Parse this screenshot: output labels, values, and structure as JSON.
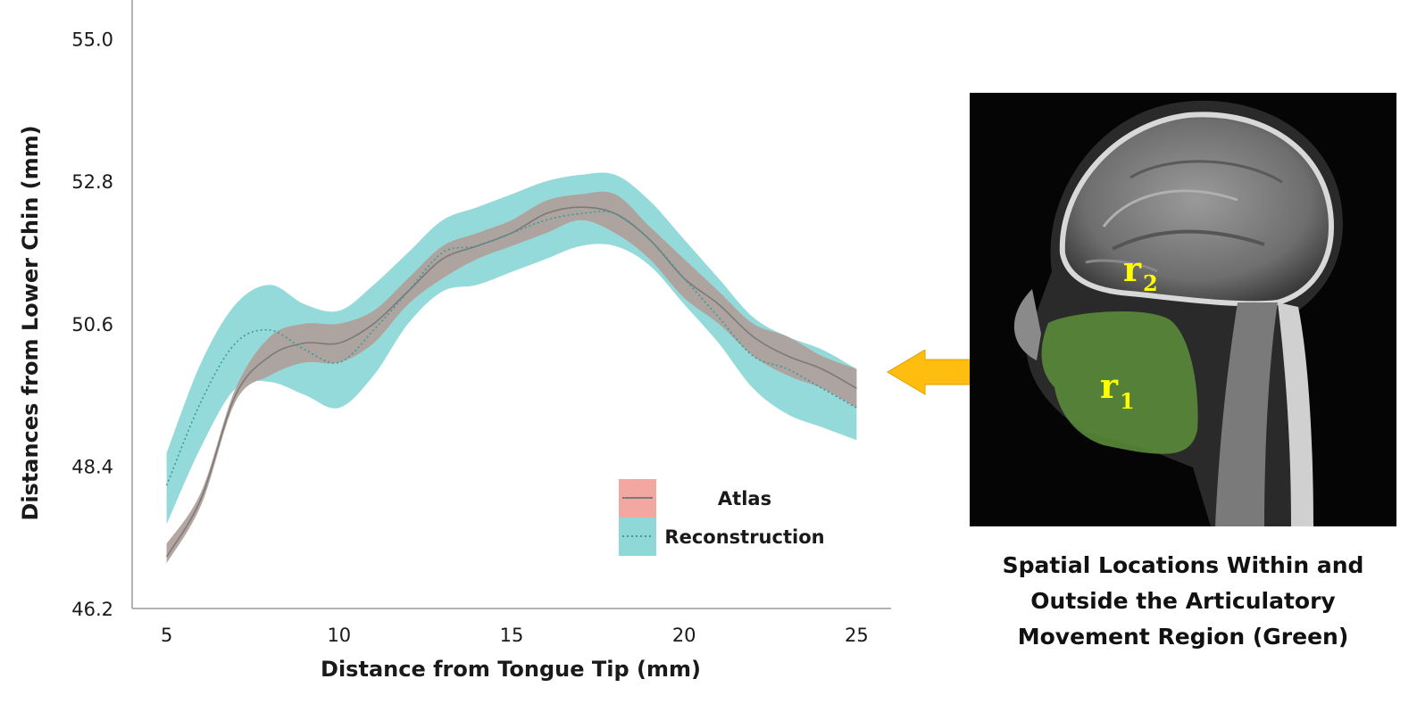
{
  "chart_data": {
    "type": "line",
    "xlabel": "Distance from Tongue Tip (mm)",
    "ylabel": "Distances from Lower Chin (mm)",
    "xlim": [
      4,
      26
    ],
    "ylim": [
      46.2,
      55.6
    ],
    "xticks": [
      5,
      10,
      15,
      20,
      25
    ],
    "yticks": [
      46.2,
      48.4,
      50.6,
      52.8,
      55.0
    ],
    "ytick_labels": [
      "46.2",
      "48.4",
      "50.6",
      "52.8",
      "55.0"
    ],
    "legend_position": "lower-right",
    "x": [
      5,
      6,
      7,
      8,
      9,
      10,
      11,
      12,
      13,
      14,
      15,
      16,
      17,
      18,
      19,
      20,
      21,
      22,
      23,
      24,
      25
    ],
    "series": [
      {
        "name": "Atlas",
        "line_style": "solid",
        "line_color": "#7a7a7a",
        "band_color": "#f2a7a0",
        "values": [
          47.0,
          47.9,
          49.5,
          50.1,
          50.3,
          50.3,
          50.6,
          51.1,
          51.6,
          51.8,
          52.0,
          52.3,
          52.4,
          52.3,
          51.9,
          51.3,
          50.9,
          50.4,
          50.1,
          49.9,
          49.6
        ],
        "lower": [
          46.9,
          47.8,
          49.4,
          49.8,
          50.0,
          50.0,
          50.3,
          50.9,
          51.3,
          51.6,
          51.8,
          52.0,
          52.2,
          52.0,
          51.6,
          51.0,
          50.6,
          50.1,
          49.8,
          49.6,
          49.3
        ],
        "upper": [
          47.2,
          48.0,
          49.6,
          50.4,
          50.6,
          50.6,
          50.8,
          51.3,
          51.8,
          52.0,
          52.2,
          52.5,
          52.6,
          52.6,
          52.1,
          51.6,
          51.1,
          50.6,
          50.4,
          50.1,
          49.9
        ]
      },
      {
        "name": "Reconstruction",
        "line_style": "dotted",
        "line_color": "#3a9a9a",
        "band_color": "#8fd8d8",
        "values": [
          48.1,
          49.4,
          50.3,
          50.5,
          50.2,
          50.0,
          50.5,
          51.1,
          51.7,
          51.8,
          52.0,
          52.2,
          52.3,
          52.3,
          51.9,
          51.3,
          50.7,
          50.1,
          49.9,
          49.6,
          49.3
        ],
        "lower": [
          47.5,
          48.7,
          49.6,
          49.7,
          49.5,
          49.3,
          49.8,
          50.6,
          51.1,
          51.2,
          51.4,
          51.6,
          51.8,
          51.8,
          51.5,
          50.9,
          50.3,
          49.6,
          49.2,
          49.0,
          48.8
        ],
        "upper": [
          48.6,
          50.0,
          50.9,
          51.2,
          50.9,
          50.8,
          51.2,
          51.7,
          52.2,
          52.4,
          52.6,
          52.8,
          52.9,
          52.9,
          52.5,
          51.9,
          51.3,
          50.7,
          50.4,
          50.2,
          49.9
        ]
      }
    ]
  },
  "figure": {
    "image_labels": {
      "r1_base": "r",
      "r1_sub": "1",
      "r2_base": "r",
      "r2_sub": "2"
    },
    "caption_lines": [
      "Spatial Locations Within and",
      "Outside the Articulatory",
      "Movement Region (Green)"
    ],
    "colors": {
      "arrow": "#ffbe0f",
      "region_green": "#5a8a3a",
      "label_yellow": "#ffff00"
    }
  }
}
